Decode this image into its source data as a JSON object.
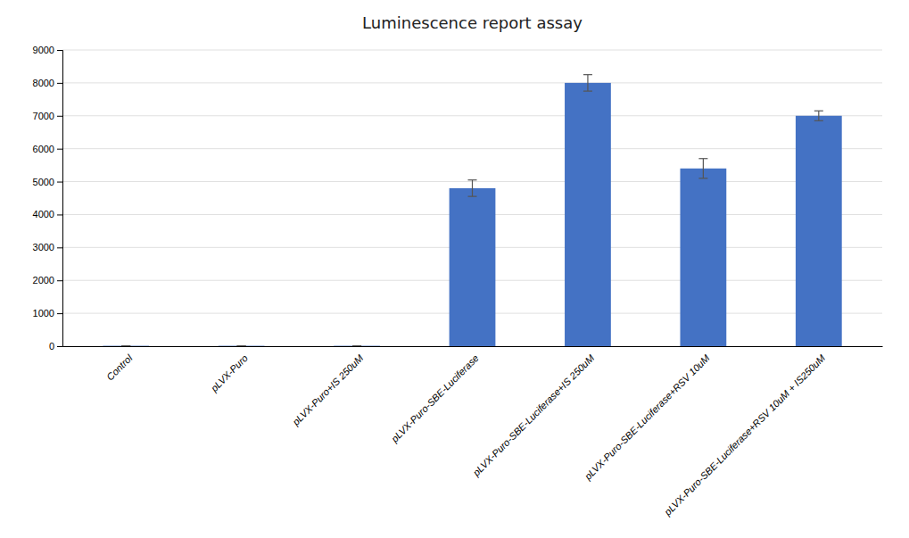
{
  "chart_data": {
    "type": "bar",
    "title": "Luminescence report assay",
    "categories": [
      "Control",
      "pLVX-Puro",
      "pLVX-Puro+IS 250uM",
      "pLVX-Puro-SBE-Luciferase",
      "pLVX-Puro-SBE-Luciferase+IS 250uM",
      "pLVX-Puro-SBE-Luciferase+RSV 10uM",
      "pLVX-Puro-SBE-Luciferase+RSV 10uM + IS250uM"
    ],
    "values": [
      10,
      10,
      10,
      4800,
      8000,
      5400,
      7000
    ],
    "errors": [
      0,
      0,
      0,
      250,
      250,
      300,
      150
    ],
    "color": "#4472C4",
    "ylim": [
      0,
      9000
    ],
    "yticks": [
      0,
      1000,
      2000,
      3000,
      4000,
      5000,
      6000,
      7000,
      8000,
      9000
    ],
    "grid": true
  }
}
